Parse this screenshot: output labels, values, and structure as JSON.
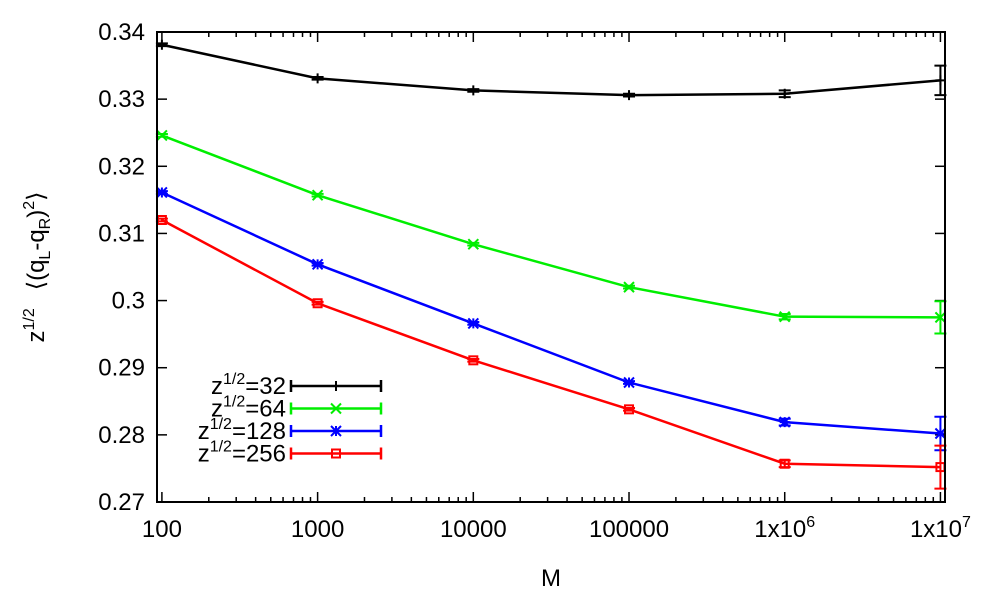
{
  "chart_data": {
    "type": "line",
    "xlabel": "M",
    "ylabel": {
      "prefix": "z",
      "prefix_sup": "1/2",
      "body": "⟨(q",
      "sub1": "L",
      "mid": "-q",
      "sub2": "R",
      "close": ")",
      "sup2": "2",
      "end": "⟩"
    },
    "x_scale": "log",
    "xlim": [
      93,
      10700000
    ],
    "ylim": [
      0.27,
      0.34
    ],
    "x": [
      100,
      1000,
      10000,
      100000,
      1000000,
      10000000
    ],
    "xtick_labels": [
      {
        "base": "100"
      },
      {
        "base": "1000"
      },
      {
        "base": "10000"
      },
      {
        "base": "100000"
      },
      {
        "base": "1x10",
        "exp": "6"
      },
      {
        "base": "1x10",
        "exp": "7"
      }
    ],
    "yticks": [
      0.27,
      0.28,
      0.29,
      0.3,
      0.31,
      0.32,
      0.33,
      0.34
    ],
    "ytick_labels": [
      "0.27",
      "0.28",
      "0.29",
      "0.3",
      "0.31",
      "0.32",
      "0.33",
      "0.34"
    ],
    "legend_position": "bottom-left",
    "series": [
      {
        "name": "z1/2=32",
        "label_base": "z",
        "label_sup": "1/2",
        "label_rest": "=32",
        "color": "#000000",
        "marker": "plus",
        "values": [
          0.3381,
          0.3331,
          0.3313,
          0.3306,
          0.3308,
          0.3328
        ],
        "errors": [
          0.0002,
          0.0002,
          0.0002,
          0.0002,
          0.0005,
          0.0022
        ]
      },
      {
        "name": "z1/2=64",
        "label_base": "z",
        "label_sup": "1/2",
        "label_rest": "=64",
        "color": "#00ee00",
        "marker": "cross",
        "values": [
          0.3246,
          0.3157,
          0.3084,
          0.302,
          0.2976,
          0.2975
        ],
        "errors": [
          0.0002,
          0.0002,
          0.0002,
          0.0002,
          0.0004,
          0.0024
        ]
      },
      {
        "name": "z1/2=128",
        "label_base": "z",
        "label_sup": "1/2",
        "label_rest": "=128",
        "color": "#0000ff",
        "marker": "star",
        "values": [
          0.3161,
          0.3054,
          0.2966,
          0.2878,
          0.2819,
          0.2802
        ],
        "errors": [
          0.0002,
          0.0002,
          0.0002,
          0.0002,
          0.0005,
          0.0025
        ]
      },
      {
        "name": "z1/2=256",
        "label_base": "z",
        "label_sup": "1/2",
        "label_rest": "=256",
        "color": "#ff0000",
        "marker": "square",
        "values": [
          0.312,
          0.2996,
          0.2911,
          0.2838,
          0.2757,
          0.2752
        ],
        "errors": [
          0.0002,
          0.0002,
          0.0002,
          0.0002,
          0.0005,
          0.0032
        ]
      }
    ]
  }
}
